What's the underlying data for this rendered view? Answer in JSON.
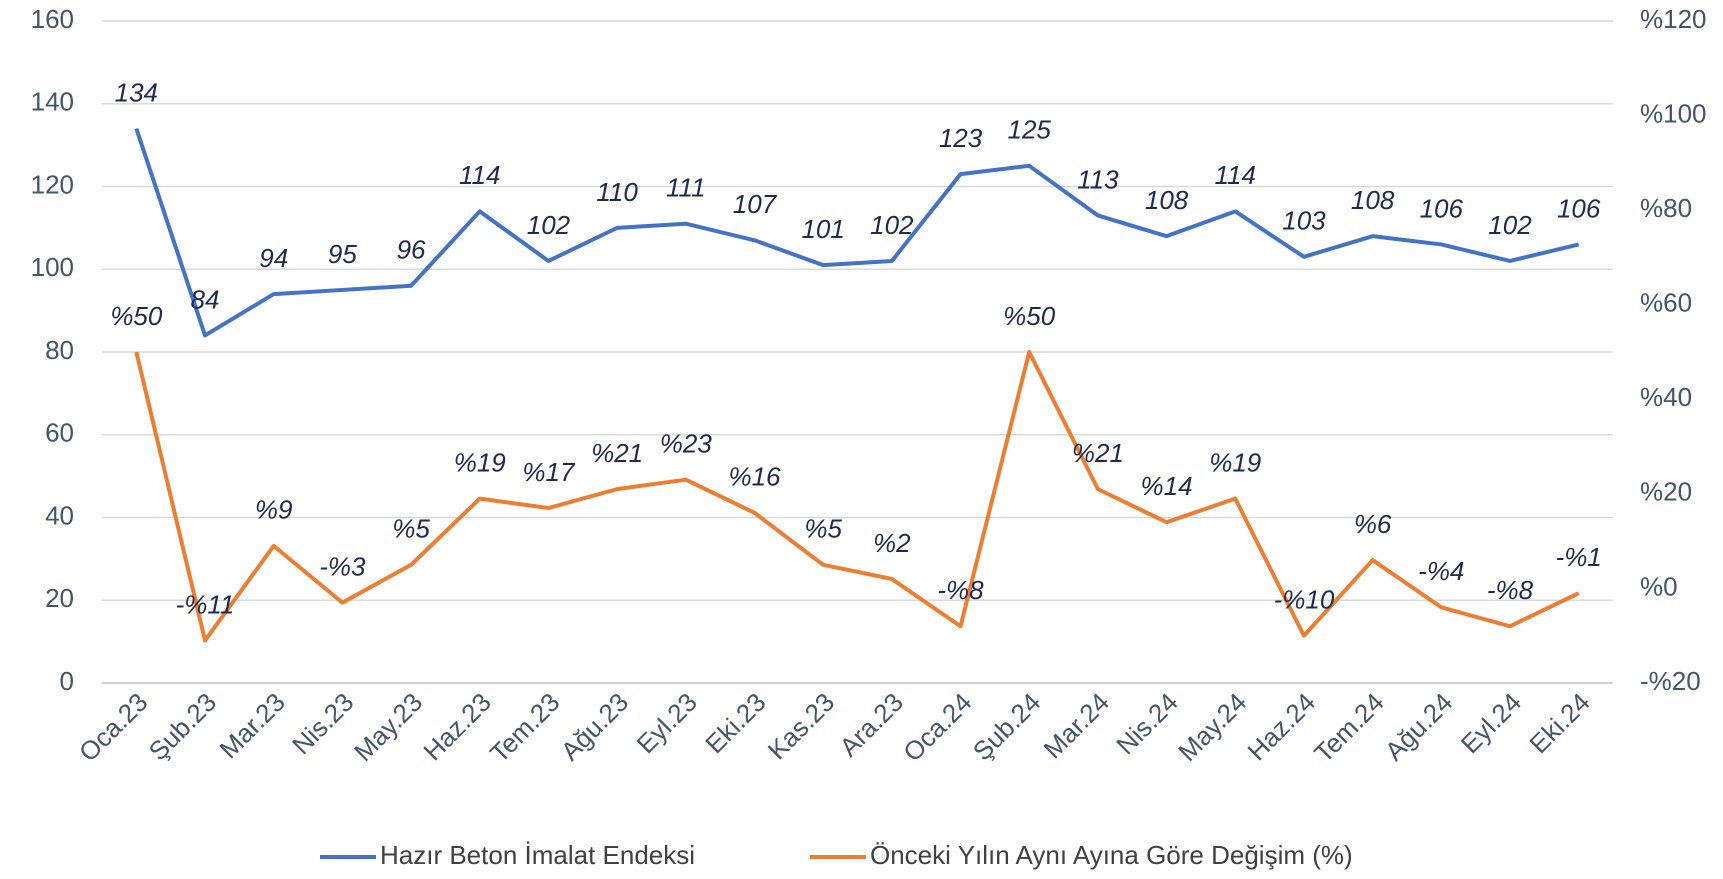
{
  "chart_data": {
    "type": "line",
    "categories": [
      "Oca.23",
      "Şub.23",
      "Mar.23",
      "Nis.23",
      "May.23",
      "Haz.23",
      "Tem.23",
      "Ağu.23",
      "Eyl.23",
      "Eki.23",
      "Kas.23",
      "Ara.23",
      "Oca.24",
      "Şub.24",
      "Mar.24",
      "Nis.24",
      "May.24",
      "Haz.24",
      "Tem.24",
      "Ağu.24",
      "Eyl.24",
      "Eki.24"
    ],
    "series": [
      {
        "name": "Hazır Beton İmalat Endeksi",
        "color": "#4472c4",
        "values": [
          134,
          84,
          94,
          95,
          96,
          114,
          102,
          110,
          111,
          107,
          101,
          102,
          123,
          125,
          113,
          108,
          114,
          103,
          108,
          106,
          102,
          106
        ]
      },
      {
        "name": "Önceki Yılın Aynı Ayına Göre Değişim (%)",
        "color": "#ed7d31",
        "axis": "y2",
        "values": [
          50,
          -11,
          9,
          -3,
          5,
          19,
          17,
          21,
          23,
          16,
          5,
          2,
          -8,
          50,
          21,
          14,
          19,
          -10,
          6,
          -4,
          -8,
          -1
        ],
        "value_labels": [
          "%50",
          "-%11",
          "%9",
          "-%3",
          "%5",
          "%19",
          "%17",
          "%21",
          "%23",
          "%16",
          "%5",
          "%2",
          "-%8",
          "%50",
          "%21",
          "%14",
          "%19",
          "-%10",
          "%6",
          "-%4",
          "-%8",
          "-%1"
        ]
      }
    ],
    "ylim": [
      0,
      160
    ],
    "yticks": [
      0,
      20,
      40,
      60,
      80,
      100,
      120,
      140,
      160
    ],
    "y2lim": [
      -20,
      120
    ],
    "y2ticks": [
      {
        "value": -20,
        "label": "-%20"
      },
      {
        "value": 0,
        "label": "%0"
      },
      {
        "value": 20,
        "label": "%20"
      },
      {
        "value": 40,
        "label": "%40"
      },
      {
        "value": 60,
        "label": "%60"
      },
      {
        "value": 80,
        "label": "%80"
      },
      {
        "value": 100,
        "label": "%100"
      },
      {
        "value": 120,
        "label": "%120"
      }
    ],
    "grid": true,
    "legend": "bottom"
  }
}
